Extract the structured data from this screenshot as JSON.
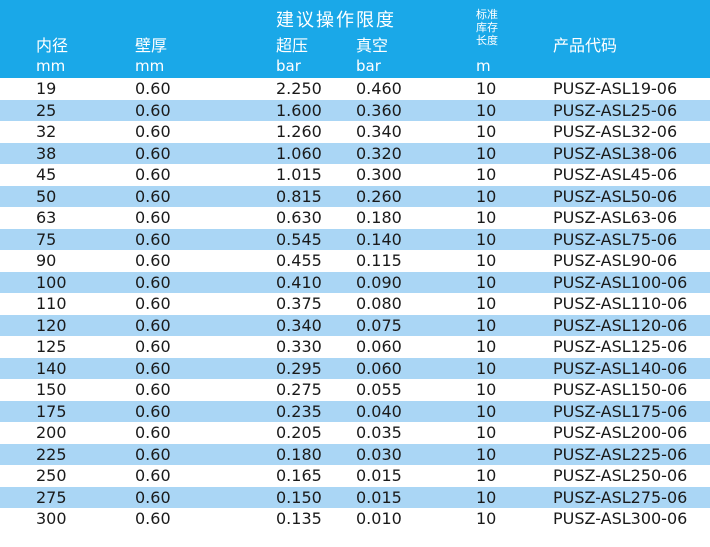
{
  "header": {
    "group_title": "建议操作限度",
    "cols": [
      {
        "name": "内径",
        "unit": "mm"
      },
      {
        "name": "壁厚",
        "unit": "mm"
      },
      {
        "name": "超压",
        "unit": "bar"
      },
      {
        "name": "真空",
        "unit": "bar"
      },
      {
        "name_lines": [
          "标准",
          "库存",
          "长度"
        ],
        "unit": "m"
      },
      {
        "name": "产品代码",
        "unit": ""
      }
    ]
  },
  "rows": [
    [
      "19",
      "0.60",
      "2.250",
      "0.460",
      "10",
      "PUSZ-ASL19-06"
    ],
    [
      "25",
      "0.60",
      "1.600",
      "0.360",
      "10",
      "PUSZ-ASL25-06"
    ],
    [
      "32",
      "0.60",
      "1.260",
      "0.340",
      "10",
      "PUSZ-ASL32-06"
    ],
    [
      "38",
      "0.60",
      "1.060",
      "0.320",
      "10",
      "PUSZ-ASL38-06"
    ],
    [
      "45",
      "0.60",
      "1.015",
      "0.300",
      "10",
      "PUSZ-ASL45-06"
    ],
    [
      "50",
      "0.60",
      "0.815",
      "0.260",
      "10",
      "PUSZ-ASL50-06"
    ],
    [
      "63",
      "0.60",
      "0.630",
      "0.180",
      "10",
      "PUSZ-ASL63-06"
    ],
    [
      "75",
      "0.60",
      "0.545",
      "0.140",
      "10",
      "PUSZ-ASL75-06"
    ],
    [
      "90",
      "0.60",
      "0.455",
      "0.115",
      "10",
      "PUSZ-ASL90-06"
    ],
    [
      "100",
      "0.60",
      "0.410",
      "0.090",
      "10",
      "PUSZ-ASL100-06"
    ],
    [
      "110",
      "0.60",
      "0.375",
      "0.080",
      "10",
      "PUSZ-ASL110-06"
    ],
    [
      "120",
      "0.60",
      "0.340",
      "0.075",
      "10",
      "PUSZ-ASL120-06"
    ],
    [
      "125",
      "0.60",
      "0.330",
      "0.060",
      "10",
      "PUSZ-ASL125-06"
    ],
    [
      "140",
      "0.60",
      "0.295",
      "0.060",
      "10",
      "PUSZ-ASL140-06"
    ],
    [
      "150",
      "0.60",
      "0.275",
      "0.055",
      "10",
      "PUSZ-ASL150-06"
    ],
    [
      "175",
      "0.60",
      "0.235",
      "0.040",
      "10",
      "PUSZ-ASL175-06"
    ],
    [
      "200",
      "0.60",
      "0.205",
      "0.035",
      "10",
      "PUSZ-ASL200-06"
    ],
    [
      "225",
      "0.60",
      "0.180",
      "0.030",
      "10",
      "PUSZ-ASL225-06"
    ],
    [
      "250",
      "0.60",
      "0.165",
      "0.015",
      "10",
      "PUSZ-ASL250-06"
    ],
    [
      "275",
      "0.60",
      "0.150",
      "0.015",
      "10",
      "PUSZ-ASL275-06"
    ],
    [
      "300",
      "0.60",
      "0.135",
      "0.010",
      "10",
      "PUSZ-ASL300-06"
    ]
  ],
  "colors": {
    "header_bg": "#1aa8e8",
    "stripe": "#aad6f5",
    "header_text": "#ffffff",
    "cell_text": "#1a1a1a"
  }
}
